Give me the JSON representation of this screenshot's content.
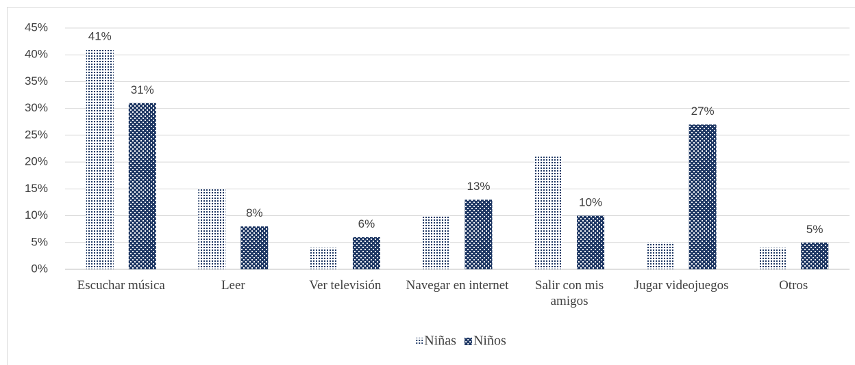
{
  "chart_data": {
    "type": "bar",
    "categories": [
      "Escuchar música",
      "Leer",
      "Ver televisión",
      "Navegar en internet",
      "Salir con mis amigos",
      "Jugar videojuegos",
      "Otros"
    ],
    "series": [
      {
        "name": "Niñas",
        "color": "#1f3864",
        "pattern": "dotted",
        "values": [
          41,
          15,
          4,
          10,
          21,
          5,
          4
        ],
        "value_labels": [
          "41%",
          null,
          null,
          null,
          null,
          null,
          null
        ]
      },
      {
        "name": "Niños",
        "color": "#1f3864",
        "pattern": "checkered",
        "values": [
          31,
          8,
          6,
          13,
          10,
          27,
          5
        ],
        "value_labels": [
          "31%",
          "8%",
          "6%",
          "13%",
          "10%",
          "27%",
          "5%"
        ]
      }
    ],
    "ylim": [
      0,
      45
    ],
    "yticks": [
      {
        "value": 0,
        "label": "0%"
      },
      {
        "value": 5,
        "label": "5%"
      },
      {
        "value": 10,
        "label": "10%"
      },
      {
        "value": 15,
        "label": "15%"
      },
      {
        "value": 20,
        "label": "20%"
      },
      {
        "value": 25,
        "label": "25%"
      },
      {
        "value": 30,
        "label": "30%"
      },
      {
        "value": 35,
        "label": "35%"
      },
      {
        "value": 40,
        "label": "40%"
      },
      {
        "value": 45,
        "label": "45%"
      }
    ],
    "grid": true,
    "legend": "bottom"
  }
}
